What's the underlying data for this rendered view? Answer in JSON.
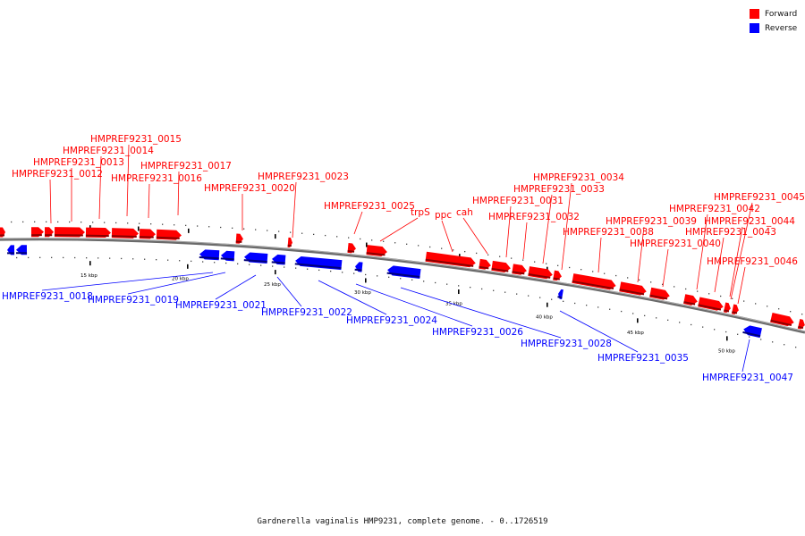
{
  "legend": {
    "forward_label": "Forward",
    "reverse_label": "Reverse",
    "forward_color": "#ff0000",
    "reverse_color": "#0000ff"
  },
  "caption": "Gardnerella vaginalis HMP9231, complete genome. - 0..1726519",
  "scale_labels": [
    "15 kbp",
    "20 kbp",
    "25 kbp",
    "30 kbp",
    "35 kbp",
    "40 kbp",
    "45 kbp",
    "50 kbp"
  ],
  "forward_genes": [
    "HMPREF9231_0012",
    "HMPREF9231_0013",
    "HMPREF9231_0014",
    "HMPREF9231_0015",
    "HMPREF9231_0016",
    "HMPREF9231_0017",
    "HMPREF9231_0020",
    "HMPREF9231_0023",
    "HMPREF9231_0025",
    "trpS",
    "ppc",
    "cah",
    "HMPREF9231_0031",
    "HMPREF9231_0032",
    "HMPREF9231_0033",
    "HMPREF9231_0034",
    "HMPREF9231_0038",
    "HMPREF9231_0039",
    "HMPREF9231_0040",
    "HMPREF9231_0042",
    "HMPREF9231_0043",
    "HMPREF9231_0044",
    "HMPREF9231_0045",
    "HMPREF9231_0046"
  ],
  "reverse_genes": [
    "HMPREF9231_0018",
    "HMPREF9231_0019",
    "HMPREF9231_0021",
    "HMPREF9231_0022",
    "HMPREF9231_0024",
    "HMPREF9231_0026",
    "HMPREF9231_0028",
    "HMPREF9231_0035",
    "HMPREF9231_0047"
  ]
}
